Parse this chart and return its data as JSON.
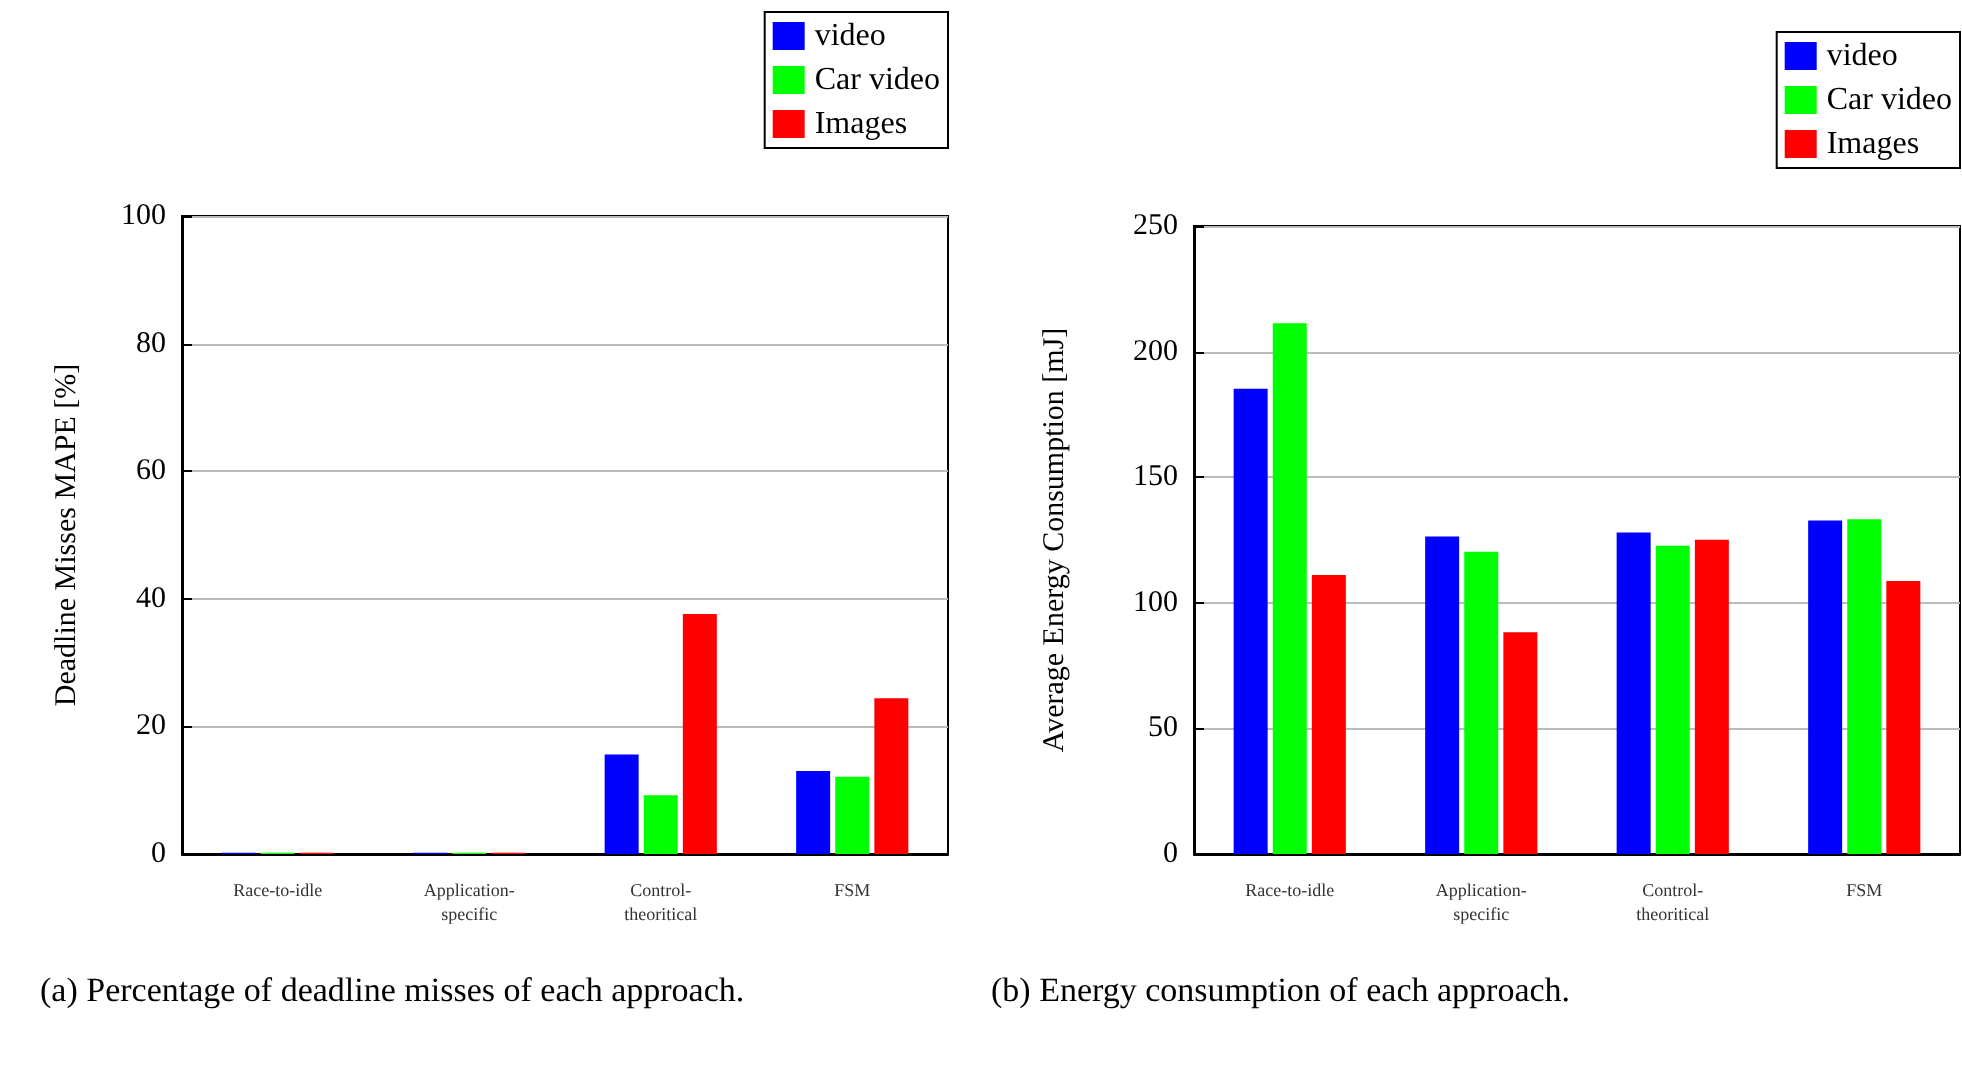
{
  "chart_data": [
    {
      "type": "bar",
      "ylabel": "Deadline Misses MAPE [%]",
      "categories": [
        "Race-to-idle",
        "Application-\nspecific",
        "Control-\ntheoritical",
        "FSM"
      ],
      "series": [
        {
          "name": "video",
          "color": "#0000ff",
          "values": [
            0.2,
            0.2,
            15.6,
            13.0
          ]
        },
        {
          "name": "Car video",
          "color": "#00ff00",
          "values": [
            0.2,
            0.2,
            9.2,
            12.1
          ]
        },
        {
          "name": "Images",
          "color": "#ff0000",
          "values": [
            0.2,
            0.2,
            37.6,
            24.4
          ]
        }
      ],
      "ylim": [
        0,
        100
      ],
      "yticks": [
        0,
        20,
        40,
        60,
        80,
        100
      ],
      "grid": "y",
      "legend": "top right",
      "annotations": [
        "(a) Percentage of deadline misses of each approach."
      ]
    },
    {
      "type": "bar",
      "ylabel": "Average Energy Consumption [mJ]",
      "categories": [
        "Race-to-idle",
        "Application-\nspecific",
        "Control-\ntheoritical",
        "FSM"
      ],
      "series": [
        {
          "name": "video",
          "color": "#0000ff",
          "values": [
            185.2,
            126.4,
            128,
            132.8
          ]
        },
        {
          "name": "Car video",
          "color": "#00ff00",
          "values": [
            211.3,
            120.3,
            122.7,
            133.3
          ]
        },
        {
          "name": "Images",
          "color": "#ff0000",
          "values": [
            111.1,
            88.3,
            125.1,
            108.7
          ]
        }
      ],
      "ylim": [
        0,
        250
      ],
      "yticks": [
        0,
        50,
        100,
        150,
        200,
        250
      ],
      "grid": "y",
      "legend": "top right",
      "annotations": [
        "(b) Energy consumption of each approach."
      ]
    }
  ]
}
